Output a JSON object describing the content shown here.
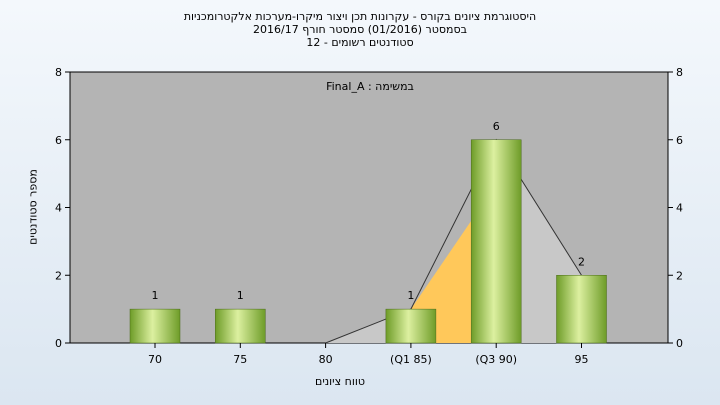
{
  "title_lines": [
    "היסטוגרמת ציונים בקורס - עקרונות תכן ויצור מיקרו-מערכות אלקטרומכניות",
    "בסמסטר  (01/2016)  סמסטר חורף 2016/17",
    "סטודנטים רשומים - 12"
  ],
  "chart_data": {
    "type": "bar",
    "categories": [
      "70",
      "75",
      "80",
      "(Q1 85)",
      "(Q3 90)",
      "95"
    ],
    "values": [
      1,
      1,
      0,
      1,
      6,
      2
    ],
    "data_labels": [
      "1",
      "1",
      "",
      "1",
      "6",
      "2"
    ],
    "ylabel": "מספר סטודנטים",
    "xlabel": "טווח ציונים",
    "ylim": [
      0,
      8
    ],
    "yticks": [
      0,
      2,
      4,
      6,
      8
    ],
    "grid": false,
    "legend": "Final_A : במשימה",
    "legend_position": "top-center",
    "colors": {
      "plot_background": "#b4b4b4",
      "bar_light": "#dcf0a0",
      "bar_dark": "#6e9c28",
      "distribution_fill": "#ffc85a",
      "distribution_fill_light": "#c8c8c8",
      "distribution_line": "#333333"
    }
  }
}
